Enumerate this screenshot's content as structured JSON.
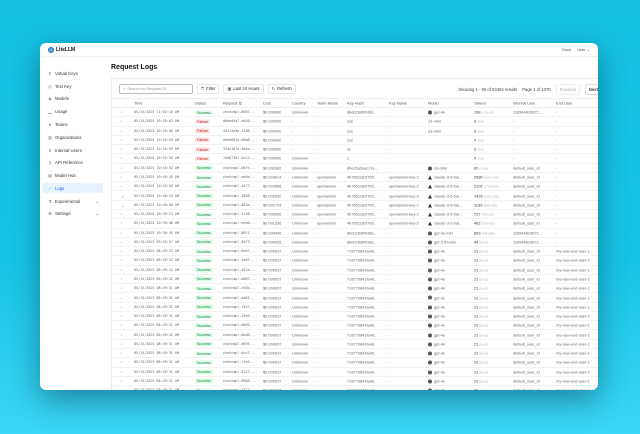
{
  "app": {
    "name": "LiteLLM",
    "docs": "Docs",
    "user": "User"
  },
  "sidebar": {
    "items": [
      {
        "label": "Virtual Keys",
        "icon": "key-icon"
      },
      {
        "label": "Test Key",
        "icon": "play-icon"
      },
      {
        "label": "Models",
        "icon": "cube-icon"
      },
      {
        "label": "Usage",
        "icon": "bar-chart-icon"
      },
      {
        "label": "Teams",
        "icon": "team-icon"
      },
      {
        "label": "Organizations",
        "icon": "building-icon"
      },
      {
        "label": "Internal Users",
        "icon": "user-icon"
      },
      {
        "label": "API Reference",
        "icon": "api-icon"
      },
      {
        "label": "Model Hub",
        "icon": "hub-icon"
      },
      {
        "label": "Logs",
        "icon": "line-chart-icon",
        "active": true
      },
      {
        "label": "Experimental",
        "icon": "flask-icon",
        "expandable": true
      },
      {
        "label": "Settings",
        "icon": "gear-icon",
        "expandable": true
      }
    ]
  },
  "page": {
    "title": "Request Logs"
  },
  "toolbar": {
    "search_placeholder": "Search by Request ID",
    "filter": "Filter",
    "time_range": "Last 24 Hours",
    "refresh": "Refresh",
    "showing": "Showing 1 - 50 of 53484 results",
    "page": "Page 1 of 1070",
    "previous": "Previous",
    "next": "Next"
  },
  "colors": {
    "success_bg": "#dcfce7",
    "success_text": "#15803d",
    "failure_bg": "#fee2e2",
    "failure_text": "#b91c1c",
    "active": "#2563eb"
  },
  "table": {
    "columns": [
      "Time",
      "Status",
      "Request ID",
      "Cost",
      "Country",
      "Team Name",
      "Key Hash",
      "Key Name",
      "Model",
      "Tokens",
      "Internal User",
      "End User"
    ],
    "rows": [
      [
        "05/15/2025 11:02:18 AM",
        "Success",
        "chatcmpl-8007...",
        "$0.000690",
        "Unknown",
        "-",
        "88dc28d0f036c...",
        "-",
        "gpt-4o",
        "198",
        "(170+28)",
        "116544810672...",
        "-"
      ],
      [
        "05/15/2025 10:55:02 AM",
        "Failure",
        "d0ded5a7-e640...",
        "$0.000000",
        "-",
        "-",
        "sss",
        "-",
        "o3-mini",
        "0",
        "(0+0)",
        "-",
        "-"
      ],
      [
        "05/15/2025 10:55:00 AM",
        "Failure",
        "43474a9b-3108...",
        "$0.000000",
        "-",
        "-",
        "sss",
        "-",
        "o3-mini",
        "0",
        "(0+0)",
        "-",
        "-"
      ],
      [
        "05/15/2025 10:54:59 AM",
        "Failure",
        "a9ee681d-b8b8...",
        "$0.000000",
        "-",
        "-",
        "sss",
        "-",
        "",
        "0",
        "(0+0)",
        "-",
        "-"
      ],
      [
        "05/15/2025 10:54:59 AM",
        "Failure",
        "334c187d-4b4e...",
        "$0.000000",
        "-",
        "-",
        "ss",
        "-",
        "",
        "0",
        "(0+0)",
        "-",
        "-"
      ],
      [
        "05/15/2025 10:54:58 AM",
        "Failure",
        "7eb67387-bcc2...",
        "$0.000000",
        "Unknown",
        "-",
        "s",
        "-",
        "",
        "0",
        "(0+0)",
        "-",
        "-"
      ],
      [
        "05/15/2025 10:54:54 AM",
        "Success",
        "chatcmpl-b8fe...",
        "$0.000382",
        "Unknown",
        "-",
        "86ec5a2eac17e...",
        "-",
        "o3-mini",
        "92",
        "(7+85)",
        "default_user_id",
        "-"
      ],
      [
        "05/15/2025 10:45:49 AM",
        "Success",
        "chatcmpl-eb6e...",
        "$0.003614",
        "Unknown",
        "openwebui",
        "4b7651c6cf795...",
        "openwebui-key-2",
        "claude-3-5-hai...",
        "2580",
        "(2127+453)",
        "default_user_id",
        "-"
      ],
      [
        "05/15/2025 10:43:00 AM",
        "Success",
        "chatcmpl-4577...",
        "$0.002866",
        "Unknown",
        "openwebui",
        "4b7651c6cf795...",
        "openwebui-key-2",
        "claude-3-5-hai...",
        "2102",
        "(1732+370)",
        "default_user_id",
        "-"
      ],
      [
        "05/15/2025 10:40:33 AM",
        "Success",
        "chatcmpl-5858...",
        "$0.002030",
        "Unknown",
        "openwebui",
        "4b7651c6cf795...",
        "openwebui-key-2",
        "claude-3-5-hai...",
        "1433",
        "(1157+276)",
        "default_user_id",
        "-"
      ],
      [
        "05/15/2025 10:40:08 AM",
        "Success",
        "chatcmpl-883a...",
        "$0.001724",
        "Unknown",
        "openwebui",
        "4b7651c6cf795...",
        "openwebui-key-2",
        "claude-3-5-hai...",
        "1139",
        "(885+254)",
        "default_user_id",
        "-"
      ],
      [
        "05/15/2025 10:39:53 AM",
        "Success",
        "chatcmpl-5748...",
        "$0.000955",
        "Unknown",
        "openwebui",
        "4b7651c6cf795...",
        "openwebui-key-2",
        "claude-3-5-hai...",
        "727",
        "(704+23)",
        "default_user_id",
        "-"
      ],
      [
        "05/15/2025 10:39:46 AM",
        "Success",
        "chatcmpl-eea6...",
        "$0.001336",
        "Unknown",
        "openwebui",
        "4b7651c6cf795...",
        "openwebui-key-2",
        "claude-3-5-hai...",
        "482",
        "(160+322)",
        "default_user_id",
        "-"
      ],
      [
        "05/15/2025 10:38:45 AM",
        "Success",
        "chatcmpl-80f1...",
        "$0.000445",
        "Unknown",
        "-",
        "88dc28d0f036c...",
        "-",
        "gpt-4o-mini",
        "899",
        "(339+560)",
        "116544810672...",
        "-"
      ],
      [
        "05/15/2025 09:53:57 AM",
        "Success",
        "chatcmpl-80f3...",
        "$0.000025",
        "Unknown",
        "-",
        "88dc28d0f036c...",
        "-",
        "gpt-3.5-turbo",
        "44",
        "(41+3)",
        "116544810672...",
        "-"
      ],
      [
        "05/15/2025 08:49:32 AM",
        "Success",
        "chatcmpl-6eb7...",
        "$0.000037",
        "Unknown",
        "-",
        "718779841fa4d...",
        "-",
        "gpt-4o",
        "21",
        "(9+12)",
        "default_user_id",
        "my-new-end-user-1"
      ],
      [
        "05/15/2025 08:49:32 AM",
        "Success",
        "chatcmpl-2e8f...",
        "$0.000037",
        "Unknown",
        "-",
        "718779841fa4d...",
        "-",
        "gpt-4o",
        "21",
        "(9+12)",
        "default_user_id",
        "my-new-end-user-1"
      ],
      [
        "05/15/2025 08:49:32 AM",
        "Success",
        "chatcmpl-d52a...",
        "$0.000037",
        "Unknown",
        "-",
        "718779841fa4d...",
        "-",
        "gpt-4o",
        "21",
        "(9+12)",
        "default_user_id",
        "my-new-end-user-1"
      ],
      [
        "05/15/2025 08:49:31 AM",
        "Success",
        "chatcmpl-a087...",
        "$0.000037",
        "Unknown",
        "-",
        "718779841fa4d...",
        "-",
        "gpt-4o",
        "21",
        "(9+12)",
        "default_user_id",
        "my-new-end-user-1"
      ],
      [
        "05/15/2025 08:49:31 AM",
        "Success",
        "chatcmpl-cd3b...",
        "$0.000037",
        "Unknown",
        "-",
        "718779841fa4d...",
        "-",
        "gpt-4o",
        "21",
        "(9+12)",
        "default_user_id",
        "my-new-end-user-1"
      ],
      [
        "05/15/2025 08:49:31 AM",
        "Success",
        "chatcmpl-da61...",
        "$0.000037",
        "Unknown",
        "-",
        "718779841fa4d...",
        "-",
        "gpt-4o",
        "21",
        "(9+12)",
        "default_user_id",
        "my-new-end-user-1"
      ],
      [
        "05/15/2025 08:49:31 AM",
        "Success",
        "chatcmpl-f5e7...",
        "$0.000037",
        "Unknown",
        "-",
        "718779841fa4d...",
        "-",
        "gpt-4o",
        "21",
        "(9+12)",
        "default_user_id",
        "my-new-end-user-1"
      ],
      [
        "05/15/2025 08:49:31 AM",
        "Success",
        "chatcmpl-43e9...",
        "$0.000037",
        "Unknown",
        "-",
        "718779841fa4d...",
        "-",
        "gpt-4o",
        "21",
        "(9+12)",
        "default_user_id",
        "my-new-end-user-1"
      ],
      [
        "05/15/2025 08:49:31 AM",
        "Success",
        "chatcmpl-d065...",
        "$0.000037",
        "Unknown",
        "-",
        "718779841fa4d...",
        "-",
        "gpt-4o",
        "21",
        "(9+12)",
        "default_user_id",
        "my-new-end-user-1"
      ],
      [
        "05/15/2025 08:49:31 AM",
        "Success",
        "chatcmpl-8ed8...",
        "$0.000037",
        "Unknown",
        "-",
        "718779841fa4d...",
        "-",
        "gpt-4o",
        "21",
        "(9+12)",
        "default_user_id",
        "my-new-end-user-1"
      ],
      [
        "05/15/2025 08:49:31 AM",
        "Success",
        "chatcmpl-e895...",
        "$0.000037",
        "Unknown",
        "-",
        "718779841fa4d...",
        "-",
        "gpt-4o",
        "21",
        "(9+12)",
        "default_user_id",
        "my-new-end-user-1"
      ],
      [
        "05/15/2025 08:49:31 AM",
        "Success",
        "chatcmpl-6cc7...",
        "$0.000037",
        "Unknown",
        "-",
        "718779841fa4d...",
        "-",
        "gpt-4o",
        "21",
        "(9+12)",
        "default_user_id",
        "my-new-end-user-1"
      ],
      [
        "05/15/2025 08:49:31 AM",
        "Success",
        "chatcmpl-7fe5...",
        "$0.000037",
        "Unknown",
        "-",
        "718779841fa4d...",
        "-",
        "gpt-4o",
        "21",
        "(9+12)",
        "default_user_id",
        "my-new-end-user-1"
      ],
      [
        "05/15/2025 08:49:31 AM",
        "Success",
        "chatcmpl-8147...",
        "$0.000037",
        "Unknown",
        "-",
        "718779841fa4d...",
        "-",
        "gpt-4o",
        "21",
        "(9+12)",
        "default_user_id",
        "my-new-end-user-1"
      ],
      [
        "05/15/2025 08:49:31 AM",
        "Success",
        "chatcmpl-8968...",
        "$0.000037",
        "Unknown",
        "-",
        "718779841fa4d...",
        "-",
        "gpt-4o",
        "21",
        "(9+12)",
        "default_user_id",
        "my-new-end-user-1"
      ],
      [
        "05/15/2025 08:49:31 AM",
        "Success",
        "chatcmpl-e777...",
        "$0.000037",
        "Unknown",
        "-",
        "718779841fa4d...",
        "-",
        "gpt-4o",
        "21",
        "(9+12)",
        "default_user_id",
        "my-new-end-user-1"
      ]
    ],
    "expanded_rows": [
      9,
      10
    ]
  }
}
